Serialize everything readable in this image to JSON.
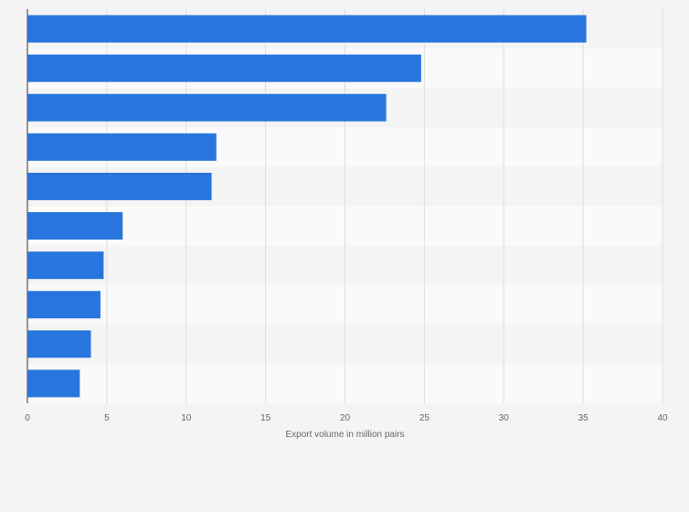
{
  "chart_data": {
    "type": "bar",
    "orientation": "horizontal",
    "categories": [
      "",
      "",
      "",
      "",
      "",
      "",
      "",
      "",
      "",
      ""
    ],
    "values": [
      35.2,
      24.8,
      22.6,
      11.9,
      11.6,
      6.0,
      4.8,
      4.6,
      4.0,
      3.3
    ],
    "title": "",
    "xlabel": "Export volume in million pairs",
    "ylabel": "",
    "xlim": [
      0,
      40
    ],
    "x_ticks": [
      0,
      5,
      10,
      15,
      20,
      25,
      30,
      35,
      40
    ],
    "x_tick_labels": [
      "0",
      "5",
      "10",
      "15",
      "20",
      "25",
      "30",
      "35",
      "40"
    ],
    "grid": "vertical",
    "legend": "none",
    "bar_color": "#2876dd",
    "band_colors": [
      "#f4f4f4",
      "#fafafa"
    ]
  }
}
